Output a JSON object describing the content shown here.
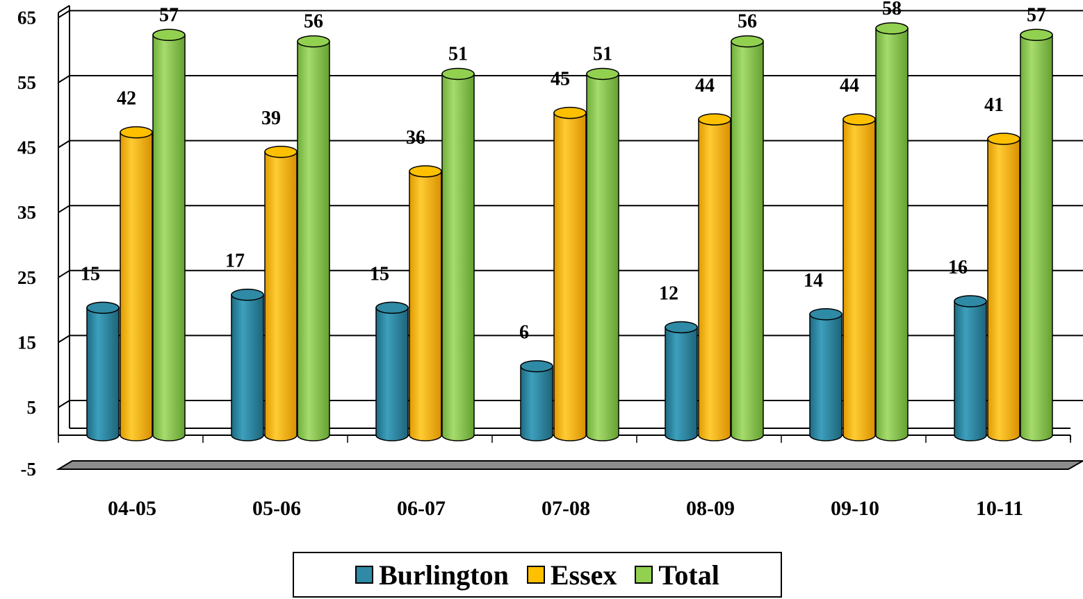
{
  "chart_data": {
    "type": "bar",
    "categories": [
      "04-05",
      "05-06",
      "06-07",
      "07-08",
      "08-09",
      "09-10",
      "10-11"
    ],
    "series": [
      {
        "name": "Burlington",
        "values": [
          15,
          17,
          15,
          6,
          12,
          14,
          16
        ],
        "color": "#2f8aa5"
      },
      {
        "name": "Essex",
        "values": [
          42,
          39,
          36,
          45,
          44,
          44,
          41
        ],
        "color": "#ffc000"
      },
      {
        "name": "Total",
        "values": [
          57,
          56,
          51,
          51,
          56,
          58,
          57
        ],
        "color": "#92d050"
      }
    ],
    "yticks": [
      "65",
      "55",
      "45",
      "35",
      "25",
      "15",
      "5",
      "-5"
    ],
    "ylim": [
      -5,
      65
    ],
    "grid": true,
    "legend_position": "bottom",
    "style": "3d-cylinder"
  }
}
